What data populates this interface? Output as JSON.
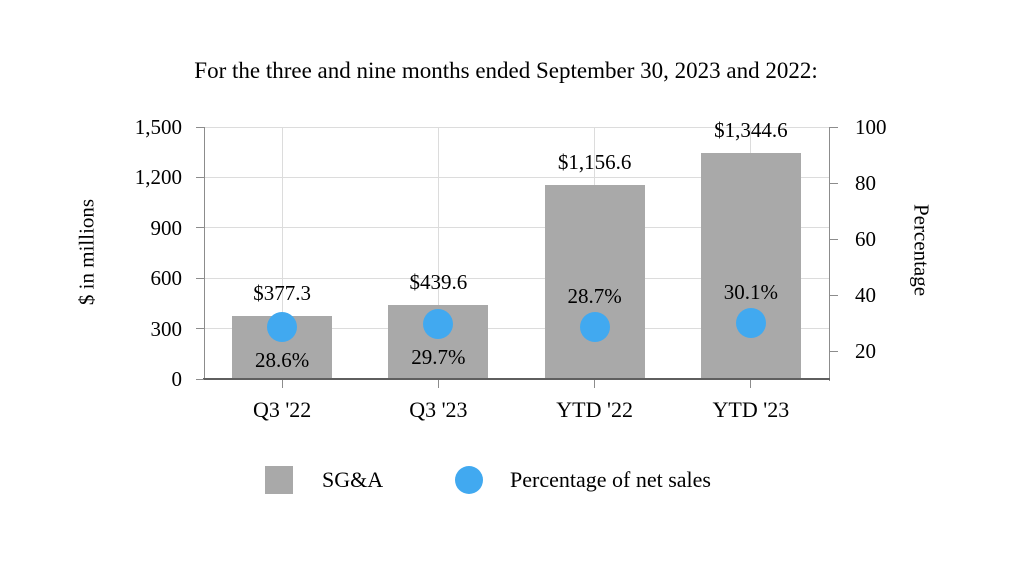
{
  "chart_data": {
    "type": "bar",
    "title": "For the three and nine months ended September 30, 2023 and 2022:",
    "categories": [
      "Q3 '22",
      "Q3 '23",
      "YTD '22",
      "YTD '23"
    ],
    "series": [
      {
        "name": "SG&A",
        "type": "bar",
        "axis": "left",
        "color": "#a9a9a9",
        "values": [
          377.3,
          439.6,
          1156.6,
          1344.6
        ],
        "labels": [
          "$377.3",
          "$439.6",
          "$1,156.6",
          "$1,344.6"
        ]
      },
      {
        "name": "Percentage of net sales",
        "type": "scatter",
        "axis": "right",
        "color": "#41a9f0",
        "values": [
          28.6,
          29.7,
          28.7,
          30.1
        ],
        "labels": [
          "28.6%",
          "29.7%",
          "28.7%",
          "30.1%"
        ],
        "label_positions": [
          "below",
          "below",
          "above",
          "above"
        ]
      }
    ],
    "left_axis": {
      "title": "$ in millions",
      "min": 0,
      "max": 1500,
      "tick_values": [
        0,
        300,
        600,
        900,
        1200,
        1500
      ],
      "tick_labels": [
        "0",
        "300",
        "600",
        "900",
        "1,200",
        "1,500"
      ]
    },
    "right_axis": {
      "title": "Percentage",
      "min": 10,
      "max": 100,
      "tick_values": [
        20,
        40,
        60,
        80,
        100
      ],
      "tick_labels": [
        "20",
        "40",
        "60",
        "80",
        "100"
      ]
    },
    "grid": true,
    "legend_position": "bottom"
  },
  "legend": {
    "items": [
      {
        "label": "SG&A",
        "swatch": "square",
        "color": "#a9a9a9"
      },
      {
        "label": "Percentage of net sales",
        "swatch": "circle",
        "color": "#41a9f0"
      }
    ]
  },
  "colors": {
    "bar": "#a9a9a9",
    "marker": "#41a9f0",
    "gridline": "#dcdcdc",
    "axis_line": "#8c8c8c",
    "baseline": "#5f5f5f",
    "text": "#000000"
  }
}
